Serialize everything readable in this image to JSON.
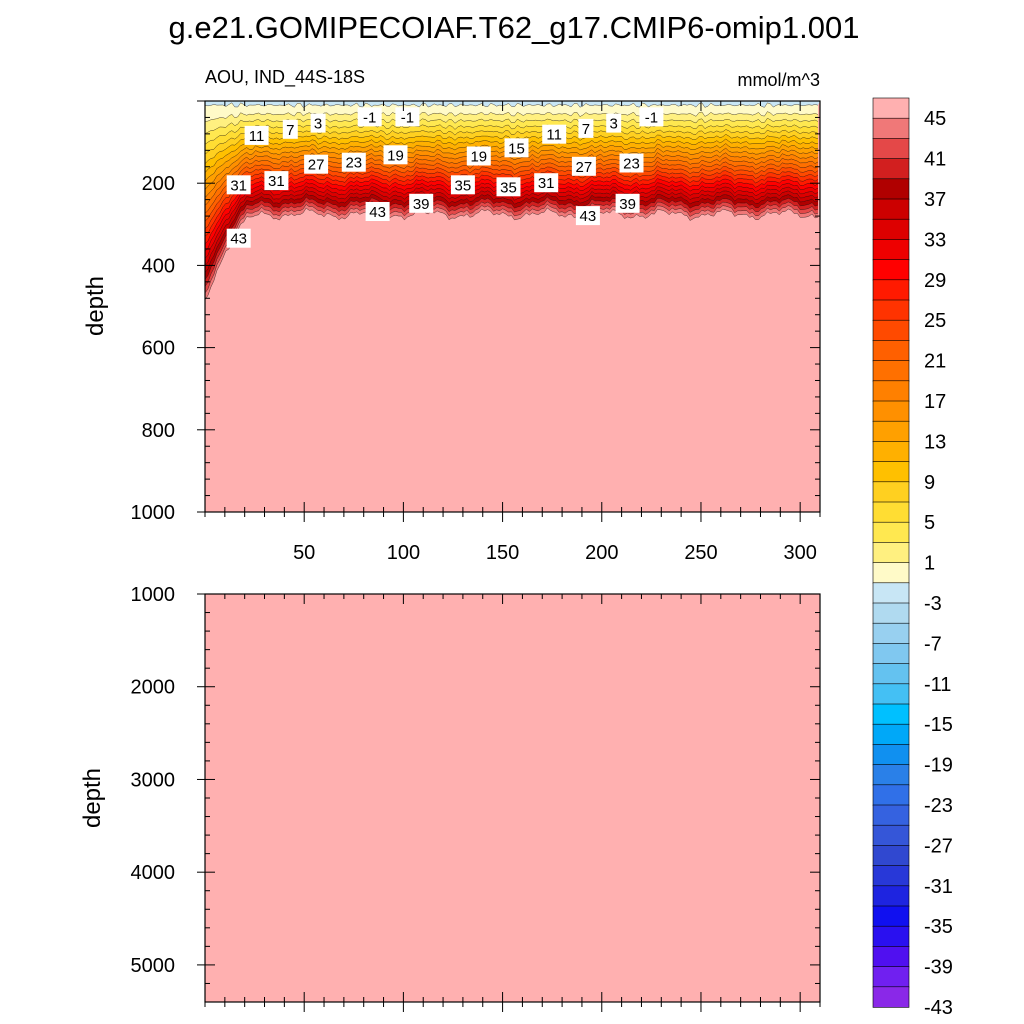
{
  "title": "g.e21.GOMIPECOIAF.T62_g17.CMIP6-omip1.001",
  "subtitle_left": "AOU, IND_44S-18S",
  "subtitle_right": "mmol/m^3",
  "chart_data": [
    {
      "type": "heatmap",
      "panel": "upper",
      "ylabel": "depth",
      "xlim": [
        0,
        310
      ],
      "ylim": [
        1000,
        0
      ],
      "x_ticks": [
        "50",
        "100",
        "150",
        "200",
        "250",
        "300"
      ],
      "y_ticks": [
        "200",
        "400",
        "600",
        "800",
        "1000"
      ],
      "contour_labels": [
        {
          "text": "-1",
          "x": 83,
          "depth": 40
        },
        {
          "text": "-1",
          "x": 102,
          "depth": 40
        },
        {
          "text": "-1",
          "x": 225,
          "depth": 40
        },
        {
          "text": "3",
          "x": 57,
          "depth": 55
        },
        {
          "text": "3",
          "x": 206,
          "depth": 55
        },
        {
          "text": "7",
          "x": 43,
          "depth": 70
        },
        {
          "text": "7",
          "x": 192,
          "depth": 68
        },
        {
          "text": "11",
          "x": 26,
          "depth": 85
        },
        {
          "text": "11",
          "x": 176,
          "depth": 82
        },
        {
          "text": "15",
          "x": 157,
          "depth": 115
        },
        {
          "text": "19",
          "x": 96,
          "depth": 132
        },
        {
          "text": "19",
          "x": 138,
          "depth": 135
        },
        {
          "text": "23",
          "x": 75,
          "depth": 150
        },
        {
          "text": "23",
          "x": 215,
          "depth": 152
        },
        {
          "text": "27",
          "x": 56,
          "depth": 155
        },
        {
          "text": "27",
          "x": 191,
          "depth": 160
        },
        {
          "text": "31",
          "x": 17,
          "depth": 205
        },
        {
          "text": "31",
          "x": 36,
          "depth": 195
        },
        {
          "text": "31",
          "x": 172,
          "depth": 200
        },
        {
          "text": "35",
          "x": 130,
          "depth": 205
        },
        {
          "text": "35",
          "x": 153,
          "depth": 210
        },
        {
          "text": "39",
          "x": 109,
          "depth": 250
        },
        {
          "text": "39",
          "x": 213,
          "depth": 250
        },
        {
          "text": "43",
          "x": 87,
          "depth": 270
        },
        {
          "text": "43",
          "x": 193,
          "depth": 280
        },
        {
          "text": "43",
          "x": 17,
          "depth": 335
        }
      ]
    },
    {
      "type": "heatmap",
      "panel": "lower",
      "ylabel": "depth",
      "xlim": [
        0,
        310
      ],
      "ylim": [
        5400,
        1000
      ],
      "y_ticks": [
        "1000",
        "2000",
        "3000",
        "4000",
        "5000"
      ],
      "fill_level": 45
    }
  ],
  "colorbar": {
    "levels": [
      -45,
      -43,
      -41,
      -39,
      -37,
      -35,
      -33,
      -31,
      -29,
      -27,
      -25,
      -23,
      -21,
      -19,
      -17,
      -15,
      -13,
      -11,
      -9,
      -7,
      -5,
      -3,
      -1,
      1,
      3,
      5,
      7,
      9,
      11,
      13,
      15,
      17,
      19,
      21,
      23,
      25,
      27,
      29,
      31,
      33,
      35,
      37,
      39,
      41,
      43,
      45
    ],
    "labels": [
      "45",
      "41",
      "37",
      "33",
      "29",
      "25",
      "21",
      "17",
      "13",
      "9",
      "5",
      "1",
      "-3",
      "-7",
      "-11",
      "-15",
      "-19",
      "-23",
      "-27",
      "-31",
      "-35",
      "-39",
      "-43"
    ],
    "colors_top_to_bottom": [
      "#ffb0b0",
      "#f07878",
      "#e44848",
      "#d21f1f",
      "#b00000",
      "#cc0000",
      "#dd0000",
      "#ee0000",
      "#ff0000",
      "#ff1a00",
      "#ff3300",
      "#ff4a00",
      "#ff6000",
      "#ff7000",
      "#ff8000",
      "#ff9000",
      "#ffa000",
      "#ffb000",
      "#ffc000",
      "#ffd020",
      "#ffdd33",
      "#ffe850",
      "#fff080",
      "#fffac8",
      "#c8e6f5",
      "#b0daf0",
      "#98d0f0",
      "#80c8f0",
      "#64c2f0",
      "#44c0f4",
      "#00c0ff",
      "#00a8f8",
      "#1090f0",
      "#2a80e8",
      "#3070e8",
      "#3562e0",
      "#3556d8",
      "#3048d0",
      "#2838d8",
      "#1e24e0",
      "#1010f0",
      "#2a10f0",
      "#5010f0",
      "#7020f0",
      "#8a28e8"
    ]
  }
}
